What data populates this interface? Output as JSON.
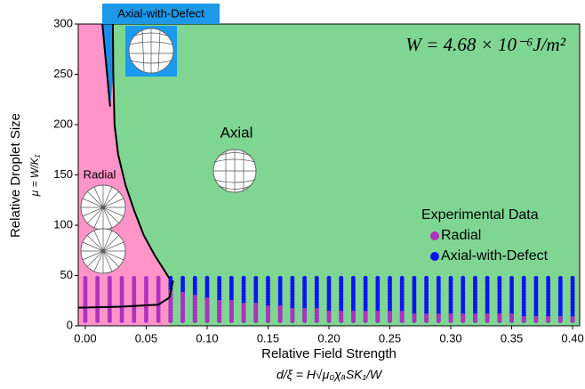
{
  "chart_data": {
    "type": "scatter",
    "annotation": "W = 4.68 × 10⁻⁶J/m²",
    "x_label": "Relative Field Strength",
    "x_label_formula": "d/ξ = H√μ₀χₐSK₁/W",
    "y_label": "Relative Droplet Size",
    "y_label_formula": "μ = W/K₁",
    "region_labels": {
      "radial": "Radial",
      "axial": "Axial",
      "axial_defect": "Axial-with-Defect"
    },
    "region_colors": {
      "radial": "#ff94c9",
      "axial": "#7fd693",
      "axial_defect": "#1a8ce8"
    },
    "legend_title": "Experimental Data",
    "xlim": [
      -0.0058,
      0.4058
    ],
    "ylim": [
      0,
      300
    ],
    "xticks": [
      {
        "value": 0,
        "label": "0.00"
      },
      0.05,
      {
        "value": 0.1,
        "label": "0.10"
      },
      0.15,
      {
        "value": 0.2,
        "label": "0.20"
      },
      0.25,
      {
        "value": 0.3,
        "label": "0.30"
      },
      0.35,
      {
        "value": 0.4,
        "label": "0.40"
      }
    ],
    "yticks": [
      0,
      50,
      100,
      150,
      200,
      250,
      300
    ],
    "boundaries": [
      {
        "x": [
          0.0226,
          0.023,
          0.024,
          0.027,
          0.033,
          0.04,
          0.048,
          0.057,
          0.065,
          0.069
        ],
        "y": [
          300,
          250,
          200,
          170,
          140,
          115,
          90,
          70,
          55,
          47
        ]
      },
      {
        "x": [
          0.014,
          0.0204
        ],
        "y": [
          300,
          218
        ]
      },
      {
        "x": [
          -0.0058,
          0.03,
          0.06,
          0.069,
          0.072
        ],
        "y": [
          18,
          19,
          21,
          28,
          45
        ]
      }
    ],
    "series": [
      {
        "name": "Axial-with-Defect",
        "color": "#0a14f0",
        "x": [
          0.07,
          0.08,
          0.09,
          0.1,
          0.11,
          0.12,
          0.13,
          0.14,
          0.15,
          0.16,
          0.17,
          0.18,
          0.19,
          0.2,
          0.21,
          0.22,
          0.23,
          0.24,
          0.25,
          0.26,
          0.27,
          0.28,
          0.29,
          0.3,
          0.31,
          0.32,
          0.33,
          0.34,
          0.35,
          0.36,
          0.37,
          0.38,
          0.39,
          0.4
        ],
        "y_low": [
          5,
          5,
          5,
          5,
          5,
          5,
          5,
          5,
          5,
          5,
          5,
          5,
          5,
          5,
          5,
          5,
          5,
          5,
          5,
          5,
          5,
          5,
          5,
          5,
          5,
          5,
          5,
          5,
          5,
          5,
          5,
          5,
          5,
          5
        ],
        "y_high": [
          48,
          48,
          48,
          48,
          48,
          48,
          48,
          48,
          48,
          48,
          48,
          48,
          48,
          48,
          48,
          48,
          48,
          48,
          48,
          48,
          48,
          48,
          48,
          48,
          48,
          48,
          48,
          48,
          48,
          48,
          48,
          48,
          48,
          48
        ]
      },
      {
        "name": "Radial",
        "color": "#b030c0",
        "x": [
          0,
          0.01,
          0.02,
          0.03,
          0.04,
          0.05,
          0.06,
          0.07,
          0.08,
          0.09,
          0.1,
          0.11,
          0.12,
          0.13,
          0.14,
          0.15,
          0.16,
          0.17,
          0.18,
          0.19,
          0.2,
          0.21,
          0.22,
          0.23,
          0.24,
          0.25,
          0.26,
          0.27,
          0.28,
          0.29,
          0.3,
          0.31,
          0.32,
          0.33,
          0.34,
          0.35,
          0.36,
          0.37,
          0.38,
          0.39,
          0.4
        ],
        "y_low": [
          5,
          5,
          5,
          5,
          5,
          5,
          5,
          5,
          5,
          5,
          5,
          5,
          5,
          5,
          5,
          5,
          5,
          5,
          5,
          5,
          5,
          5,
          5,
          5,
          5,
          5,
          5,
          5,
          5,
          5,
          5,
          5,
          5,
          5,
          5,
          5,
          5,
          5,
          5,
          5,
          5
        ],
        "y_high": [
          48,
          48,
          48,
          48,
          48,
          48,
          48,
          36,
          33,
          30,
          28,
          26,
          24,
          22,
          21,
          20,
          19,
          18,
          17,
          16,
          15,
          15,
          14,
          14,
          13,
          13,
          13,
          12,
          12,
          12,
          12,
          11,
          11,
          11,
          11,
          11,
          10,
          10,
          10,
          10,
          10
        ]
      }
    ]
  }
}
